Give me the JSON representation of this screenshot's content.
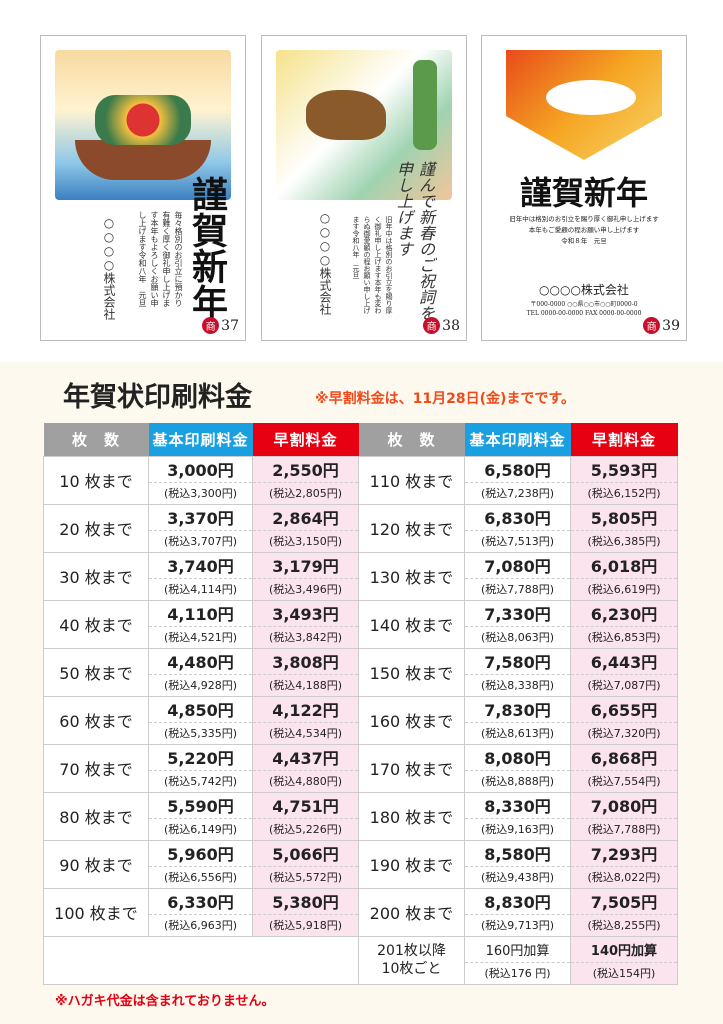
{
  "cards": [
    {
      "number": "37",
      "mark": "商",
      "greeting": "謹賀新年",
      "message": [
        "毎々格別のお引立に預かり",
        "有難く厚く御礼申し上げます",
        "本年もよろしくお願い申し上げます",
        "令和八年　元旦"
      ],
      "company": "○○○○株式会社"
    },
    {
      "number": "38",
      "mark": "商",
      "greeting": "謹んで新春のご祝詞を申し上げます",
      "message": [
        "旧年中は格別のお引立を賜り",
        "厚く御礼申し上げます",
        "本年も変わらぬ御愛顧の程お願い申し上げます",
        "令和八年　元旦"
      ],
      "company": "○○○○株式会社"
    },
    {
      "number": "39",
      "mark": "商",
      "greeting": "謹賀新年",
      "message": [
        "旧年中は格別のお引立を賜り厚く御礼申し上げます",
        "本年もご愛顧の程お願い申し上げます",
        "令和８年　元旦"
      ],
      "company": "○○○○株式会社",
      "address": "〒000-0000 ○○県○○市○○町0000-0",
      "tel": "TEL 0000-00-0000 FAX 0000-00-0000"
    }
  ],
  "title": "年賀状印刷料金",
  "note": "※早割料金は、11月28日(金)までです。",
  "headers": {
    "count": "枚　数",
    "basic": "基本印刷料金",
    "early": "早割料金"
  },
  "colors": {
    "header_gray": "#a0a0a0",
    "header_blue": "#1aa0e0",
    "header_red": "#e60012",
    "early_bg": "#fce4ef",
    "note": "#f04a1a"
  },
  "rows": [
    [
      {
        "label": "10 枚まで",
        "basic": "3,000円",
        "basic_tax": "(税込3,300円)",
        "early": "2,550円",
        "early_tax": "(税込2,805円)"
      },
      {
        "label": "110 枚まで",
        "basic": "6,580円",
        "basic_tax": "(税込7,238円)",
        "early": "5,593円",
        "early_tax": "(税込6,152円)"
      }
    ],
    [
      {
        "label": "20 枚まで",
        "basic": "3,370円",
        "basic_tax": "(税込3,707円)",
        "early": "2,864円",
        "early_tax": "(税込3,150円)"
      },
      {
        "label": "120 枚まで",
        "basic": "6,830円",
        "basic_tax": "(税込7,513円)",
        "early": "5,805円",
        "early_tax": "(税込6,385円)"
      }
    ],
    [
      {
        "label": "30 枚まで",
        "basic": "3,740円",
        "basic_tax": "(税込4,114円)",
        "early": "3,179円",
        "early_tax": "(税込3,496円)"
      },
      {
        "label": "130 枚まで",
        "basic": "7,080円",
        "basic_tax": "(税込7,788円)",
        "early": "6,018円",
        "early_tax": "(税込6,619円)"
      }
    ],
    [
      {
        "label": "40 枚まで",
        "basic": "4,110円",
        "basic_tax": "(税込4,521円)",
        "early": "3,493円",
        "early_tax": "(税込3,842円)"
      },
      {
        "label": "140 枚まで",
        "basic": "7,330円",
        "basic_tax": "(税込8,063円)",
        "early": "6,230円",
        "early_tax": "(税込6,853円)"
      }
    ],
    [
      {
        "label": "50 枚まで",
        "basic": "4,480円",
        "basic_tax": "(税込4,928円)",
        "early": "3,808円",
        "early_tax": "(税込4,188円)"
      },
      {
        "label": "150 枚まで",
        "basic": "7,580円",
        "basic_tax": "(税込8,338円)",
        "early": "6,443円",
        "early_tax": "(税込7,087円)"
      }
    ],
    [
      {
        "label": "60 枚まで",
        "basic": "4,850円",
        "basic_tax": "(税込5,335円)",
        "early": "4,122円",
        "early_tax": "(税込4,534円)"
      },
      {
        "label": "160 枚まで",
        "basic": "7,830円",
        "basic_tax": "(税込8,613円)",
        "early": "6,655円",
        "early_tax": "(税込7,320円)"
      }
    ],
    [
      {
        "label": "70 枚まで",
        "basic": "5,220円",
        "basic_tax": "(税込5,742円)",
        "early": "4,437円",
        "early_tax": "(税込4,880円)"
      },
      {
        "label": "170 枚まで",
        "basic": "8,080円",
        "basic_tax": "(税込8,888円)",
        "early": "6,868円",
        "early_tax": "(税込7,554円)"
      }
    ],
    [
      {
        "label": "80 枚まで",
        "basic": "5,590円",
        "basic_tax": "(税込6,149円)",
        "early": "4,751円",
        "early_tax": "(税込5,226円)"
      },
      {
        "label": "180 枚まで",
        "basic": "8,330円",
        "basic_tax": "(税込9,163円)",
        "early": "7,080円",
        "early_tax": "(税込7,788円)"
      }
    ],
    [
      {
        "label": "90 枚まで",
        "basic": "5,960円",
        "basic_tax": "(税込6,556円)",
        "early": "5,066円",
        "early_tax": "(税込5,572円)"
      },
      {
        "label": "190 枚まで",
        "basic": "8,580円",
        "basic_tax": "(税込9,438円)",
        "early": "7,293円",
        "early_tax": "(税込8,022円)"
      }
    ],
    [
      {
        "label": "100 枚まで",
        "basic": "6,330円",
        "basic_tax": "(税込6,963円)",
        "early": "5,380円",
        "early_tax": "(税込5,918円)"
      },
      {
        "label": "200 枚まで",
        "basic": "8,830円",
        "basic_tax": "(税込9,713円)",
        "early": "7,505円",
        "early_tax": "(税込8,255円)"
      }
    ]
  ],
  "extra": {
    "label_1": "201枚以降",
    "label_2": "10枚ごと",
    "basic": "160円加算",
    "basic_tax": "(税込176 円)",
    "early": "140円加算",
    "early_tax": "(税込154円)"
  },
  "footnote": "※ハガキ代金は含まれておりません。"
}
